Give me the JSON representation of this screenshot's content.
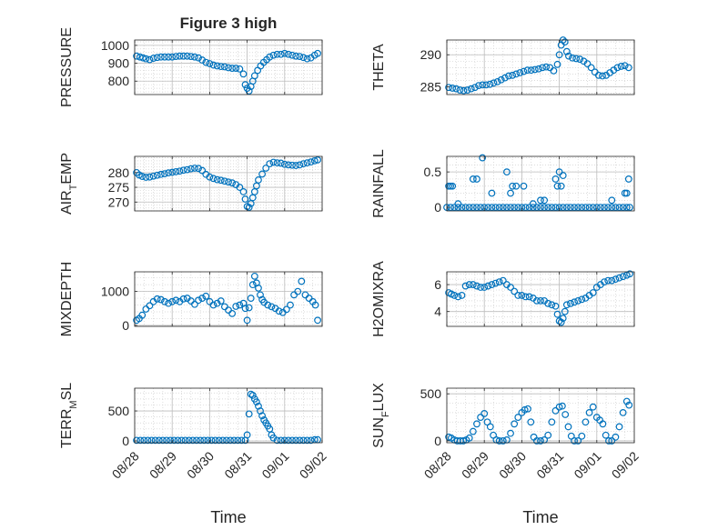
{
  "title": "Figure 3 high",
  "x_axis_label": "Time",
  "x_tick_labels": [
    "08/28",
    "08/29",
    "08/30",
    "08/31",
    "09/01",
    "09/02"
  ],
  "marker_color": "#0072bd",
  "chart_data": [
    {
      "type": "scatter",
      "name": "pressure-panel",
      "ylabel": "PRESSURE",
      "yticks": [
        800,
        900,
        1000
      ],
      "ylim": [
        725,
        1030
      ],
      "xlim": [
        0,
        5
      ],
      "grid": true,
      "x": [
        0.05,
        0.14,
        0.22,
        0.3,
        0.4,
        0.5,
        0.6,
        0.7,
        0.8,
        0.9,
        1.0,
        1.1,
        1.2,
        1.3,
        1.4,
        1.5,
        1.6,
        1.7,
        1.8,
        1.9,
        2.0,
        2.1,
        2.2,
        2.3,
        2.4,
        2.5,
        2.6,
        2.7,
        2.8,
        2.9,
        2.95,
        3.0,
        3.05,
        3.1,
        3.15,
        3.2,
        3.28,
        3.36,
        3.44,
        3.52,
        3.6,
        3.7,
        3.8,
        3.9,
        4.0,
        4.1,
        4.2,
        4.3,
        4.4,
        4.5,
        4.6,
        4.7,
        4.8,
        4.88
      ],
      "y": [
        940,
        935,
        930,
        925,
        920,
        928,
        932,
        935,
        935,
        935,
        935,
        938,
        940,
        940,
        940,
        938,
        935,
        930,
        918,
        905,
        898,
        890,
        885,
        882,
        880,
        875,
        872,
        872,
        868,
        840,
        780,
        760,
        745,
        770,
        800,
        830,
        860,
        885,
        905,
        920,
        935,
        945,
        950,
        950,
        955,
        950,
        945,
        940,
        938,
        932,
        925,
        930,
        945,
        955
      ]
    },
    {
      "type": "scatter",
      "name": "theta-panel",
      "ylabel": "THETA",
      "yticks": [
        285,
        290
      ],
      "ylim": [
        283.8,
        292.3
      ],
      "xlim": [
        0,
        5
      ],
      "grid": true,
      "x": [
        0.05,
        0.15,
        0.25,
        0.35,
        0.45,
        0.55,
        0.65,
        0.75,
        0.85,
        0.95,
        1.05,
        1.15,
        1.25,
        1.35,
        1.45,
        1.55,
        1.65,
        1.75,
        1.85,
        1.95,
        2.05,
        2.15,
        2.25,
        2.35,
        2.45,
        2.55,
        2.65,
        2.75,
        2.85,
        2.95,
        3.0,
        3.05,
        3.1,
        3.15,
        3.2,
        3.25,
        3.35,
        3.45,
        3.55,
        3.65,
        3.75,
        3.85,
        3.95,
        4.05,
        4.15,
        4.25,
        4.35,
        4.45,
        4.55,
        4.65,
        4.75,
        4.85
      ],
      "y": [
        284.9,
        284.8,
        284.7,
        284.5,
        284.4,
        284.5,
        284.7,
        284.9,
        285.2,
        285.3,
        285.3,
        285.4,
        285.6,
        285.8,
        286.1,
        286.4,
        286.7,
        286.8,
        287.0,
        287.2,
        287.4,
        287.6,
        287.6,
        287.7,
        287.8,
        288.0,
        288.1,
        288.0,
        287.5,
        288.5,
        290.0,
        291.5,
        292.3,
        292.0,
        290.5,
        289.8,
        289.5,
        289.4,
        289.3,
        289.0,
        288.6,
        288.0,
        287.3,
        286.8,
        286.7,
        286.8,
        287.2,
        287.6,
        288.0,
        288.2,
        288.3,
        288.0
      ]
    },
    {
      "type": "scatter",
      "name": "air-temp-panel",
      "ylabel": "AIR_TEMP",
      "yticks": [
        270,
        275,
        280
      ],
      "ylim": [
        267,
        285.5
      ],
      "xlim": [
        0,
        5
      ],
      "grid": true,
      "x": [
        0.05,
        0.12,
        0.2,
        0.3,
        0.4,
        0.5,
        0.6,
        0.7,
        0.8,
        0.9,
        1.0,
        1.1,
        1.2,
        1.3,
        1.4,
        1.5,
        1.6,
        1.7,
        1.8,
        1.9,
        2.0,
        2.1,
        2.2,
        2.3,
        2.4,
        2.5,
        2.6,
        2.7,
        2.8,
        2.9,
        2.95,
        3.0,
        3.05,
        3.1,
        3.15,
        3.2,
        3.25,
        3.3,
        3.4,
        3.5,
        3.6,
        3.7,
        3.8,
        3.9,
        4.0,
        4.1,
        4.2,
        4.3,
        4.4,
        4.5,
        4.6,
        4.7,
        4.8,
        4.88
      ],
      "y": [
        280.0,
        279.2,
        278.7,
        278.4,
        278.5,
        278.8,
        279.1,
        279.4,
        279.6,
        279.9,
        280.1,
        280.3,
        280.5,
        280.8,
        281.0,
        281.3,
        281.5,
        281.4,
        280.7,
        279.4,
        278.5,
        278.0,
        277.6,
        277.4,
        277.1,
        276.8,
        276.5,
        275.9,
        275.0,
        273.5,
        271.0,
        268.5,
        268.2,
        269.5,
        271.5,
        273.5,
        275.5,
        277.5,
        279.5,
        281.5,
        283.0,
        283.5,
        283.3,
        283.2,
        282.8,
        282.6,
        282.5,
        282.4,
        282.6,
        283.0,
        283.3,
        283.6,
        284.0,
        284.3
      ]
    },
    {
      "type": "scatter",
      "name": "rainfall-panel",
      "ylabel": "RAINFALL",
      "yticks": [
        0,
        0.5
      ],
      "ylim": [
        -0.05,
        0.72
      ],
      "xlim": [
        0,
        5
      ],
      "grid": true,
      "x": [
        0.0,
        0.1,
        0.2,
        0.3,
        0.4,
        0.5,
        0.6,
        0.7,
        0.8,
        0.9,
        1.0,
        1.1,
        1.2,
        1.3,
        1.4,
        1.5,
        1.6,
        1.7,
        1.8,
        1.9,
        2.0,
        2.1,
        2.2,
        2.3,
        2.4,
        2.5,
        2.6,
        2.7,
        2.8,
        2.9,
        3.0,
        3.1,
        3.2,
        3.3,
        3.4,
        3.5,
        3.6,
        3.7,
        3.8,
        3.9,
        4.0,
        4.1,
        4.2,
        4.3,
        4.4,
        4.5,
        4.6,
        4.7,
        4.8,
        4.88,
        0.05,
        0.1,
        0.15,
        0.3,
        0.7,
        0.8,
        0.95,
        1.2,
        1.6,
        1.7,
        1.75,
        1.85,
        2.05,
        2.3,
        2.5,
        2.6,
        2.9,
        2.95,
        3.0,
        3.05,
        3.1,
        4.4,
        4.75,
        4.8,
        4.85
      ],
      "y": [
        0,
        0,
        0,
        0,
        0,
        0,
        0,
        0,
        0,
        0,
        0,
        0,
        0,
        0,
        0,
        0,
        0,
        0,
        0,
        0,
        0,
        0,
        0,
        0,
        0,
        0,
        0,
        0,
        0,
        0,
        0,
        0,
        0,
        0,
        0,
        0,
        0,
        0,
        0,
        0,
        0,
        0,
        0,
        0,
        0,
        0,
        0,
        0,
        0,
        0,
        0.3,
        0.3,
        0.3,
        0.05,
        0.4,
        0.4,
        0.7,
        0.2,
        0.5,
        0.2,
        0.3,
        0.3,
        0.3,
        0.05,
        0.1,
        0.1,
        0.4,
        0.3,
        0.5,
        0.3,
        0.45,
        0.1,
        0.2,
        0.2,
        0.4
      ]
    },
    {
      "type": "scatter",
      "name": "mixdepth-panel",
      "ylabel": "MIXDEPTH",
      "yticks": [
        0,
        1000
      ],
      "ylim": [
        -30,
        1580
      ],
      "xlim": [
        0,
        5
      ],
      "grid": true,
      "x": [
        0.05,
        0.12,
        0.2,
        0.3,
        0.4,
        0.5,
        0.6,
        0.7,
        0.8,
        0.9,
        1.0,
        1.1,
        1.2,
        1.3,
        1.4,
        1.5,
        1.6,
        1.7,
        1.8,
        1.9,
        2.0,
        2.1,
        2.2,
        2.3,
        2.4,
        2.5,
        2.6,
        2.7,
        2.8,
        2.9,
        2.95,
        3.0,
        3.05,
        3.1,
        3.15,
        3.2,
        3.25,
        3.3,
        3.35,
        3.4,
        3.45,
        3.55,
        3.65,
        3.75,
        3.85,
        3.95,
        4.05,
        4.15,
        4.25,
        4.35,
        4.45,
        4.55,
        4.65,
        4.75,
        4.82,
        4.88
      ],
      "y": [
        150,
        200,
        300,
        480,
        580,
        700,
        780,
        760,
        700,
        650,
        700,
        740,
        700,
        780,
        800,
        720,
        620,
        740,
        800,
        860,
        700,
        600,
        650,
        720,
        550,
        450,
        350,
        560,
        600,
        650,
        500,
        150,
        520,
        800,
        1200,
        1450,
        1250,
        1100,
        900,
        760,
        680,
        600,
        550,
        500,
        420,
        380,
        470,
        600,
        900,
        1000,
        1300,
        900,
        800,
        700,
        600,
        150
      ]
    },
    {
      "type": "scatter",
      "name": "h2omixra-panel",
      "ylabel": "H2OMIXRA",
      "yticks": [
        4,
        6
      ],
      "ylim": [
        2.9,
        6.95
      ],
      "xlim": [
        0,
        5
      ],
      "grid": true,
      "x": [
        0.05,
        0.12,
        0.2,
        0.3,
        0.4,
        0.5,
        0.6,
        0.7,
        0.8,
        0.9,
        1.0,
        1.1,
        1.2,
        1.3,
        1.4,
        1.5,
        1.6,
        1.7,
        1.8,
        1.9,
        2.0,
        2.1,
        2.2,
        2.3,
        2.4,
        2.5,
        2.6,
        2.7,
        2.8,
        2.9,
        2.95,
        3.0,
        3.05,
        3.1,
        3.15,
        3.2,
        3.3,
        3.4,
        3.5,
        3.6,
        3.7,
        3.8,
        3.9,
        4.0,
        4.1,
        4.2,
        4.3,
        4.4,
        4.5,
        4.6,
        4.7,
        4.8,
        4.88
      ],
      "y": [
        5.4,
        5.3,
        5.2,
        5.1,
        5.2,
        5.9,
        6.0,
        6.0,
        5.9,
        5.8,
        5.8,
        5.9,
        6.0,
        6.1,
        6.2,
        6.3,
        6.0,
        5.8,
        5.5,
        5.2,
        5.2,
        5.1,
        5.1,
        5.0,
        4.8,
        4.8,
        4.8,
        4.6,
        4.5,
        4.4,
        3.8,
        3.3,
        3.2,
        3.5,
        4.0,
        4.5,
        4.6,
        4.7,
        4.8,
        4.9,
        5.0,
        5.2,
        5.4,
        5.8,
        6.0,
        6.2,
        6.3,
        6.3,
        6.4,
        6.5,
        6.6,
        6.7,
        6.8
      ]
    },
    {
      "type": "scatter",
      "name": "terr-msl-panel",
      "ylabel": "TERR_MSL",
      "yticks": [
        0,
        500
      ],
      "ylim": [
        -30,
        880
      ],
      "xlim": [
        0,
        5
      ],
      "grid": true,
      "x": [
        0.05,
        0.15,
        0.25,
        0.35,
        0.45,
        0.55,
        0.65,
        0.75,
        0.85,
        0.95,
        1.05,
        1.15,
        1.25,
        1.35,
        1.45,
        1.55,
        1.65,
        1.75,
        1.85,
        1.95,
        2.05,
        2.15,
        2.25,
        2.35,
        2.45,
        2.55,
        2.65,
        2.75,
        2.85,
        2.95,
        3.0,
        3.05,
        3.1,
        3.15,
        3.2,
        3.25,
        3.3,
        3.35,
        3.4,
        3.45,
        3.5,
        3.55,
        3.6,
        3.65,
        3.7,
        3.8,
        3.9,
        4.0,
        4.1,
        4.2,
        4.3,
        4.4,
        4.5,
        4.6,
        4.7,
        4.8,
        4.88
      ],
      "y": [
        10,
        10,
        10,
        10,
        10,
        10,
        10,
        10,
        10,
        10,
        10,
        10,
        10,
        10,
        10,
        10,
        10,
        10,
        10,
        10,
        10,
        10,
        10,
        10,
        10,
        10,
        10,
        10,
        10,
        10,
        100,
        450,
        780,
        760,
        700,
        650,
        580,
        500,
        420,
        350,
        300,
        250,
        200,
        100,
        50,
        10,
        10,
        10,
        10,
        10,
        10,
        10,
        10,
        10,
        10,
        20,
        20
      ]
    },
    {
      "type": "scatter",
      "name": "sun-flux-panel",
      "ylabel": "SUN_FLUX",
      "yticks": [
        0,
        500
      ],
      "ylim": [
        -20,
        560
      ],
      "xlim": [
        0,
        5
      ],
      "grid": true,
      "x": [
        0.05,
        0.12,
        0.2,
        0.28,
        0.36,
        0.44,
        0.52,
        0.6,
        0.7,
        0.8,
        0.9,
        1.0,
        1.08,
        1.16,
        1.24,
        1.32,
        1.4,
        1.5,
        1.6,
        1.7,
        1.8,
        1.9,
        2.0,
        2.08,
        2.16,
        2.24,
        2.32,
        2.4,
        2.5,
        2.6,
        2.7,
        2.8,
        2.9,
        3.0,
        3.08,
        3.16,
        3.24,
        3.32,
        3.4,
        3.5,
        3.6,
        3.7,
        3.8,
        3.9,
        4.0,
        4.08,
        4.16,
        4.24,
        4.32,
        4.4,
        4.5,
        4.6,
        4.7,
        4.8,
        4.86
      ],
      "y": [
        40,
        30,
        10,
        0,
        0,
        0,
        10,
        30,
        100,
        180,
        250,
        290,
        200,
        150,
        60,
        10,
        0,
        0,
        10,
        80,
        180,
        250,
        300,
        330,
        340,
        200,
        40,
        0,
        0,
        10,
        60,
        200,
        320,
        360,
        370,
        280,
        150,
        50,
        0,
        0,
        50,
        200,
        300,
        360,
        250,
        220,
        180,
        60,
        0,
        0,
        40,
        150,
        300,
        420,
        380
      ]
    }
  ]
}
